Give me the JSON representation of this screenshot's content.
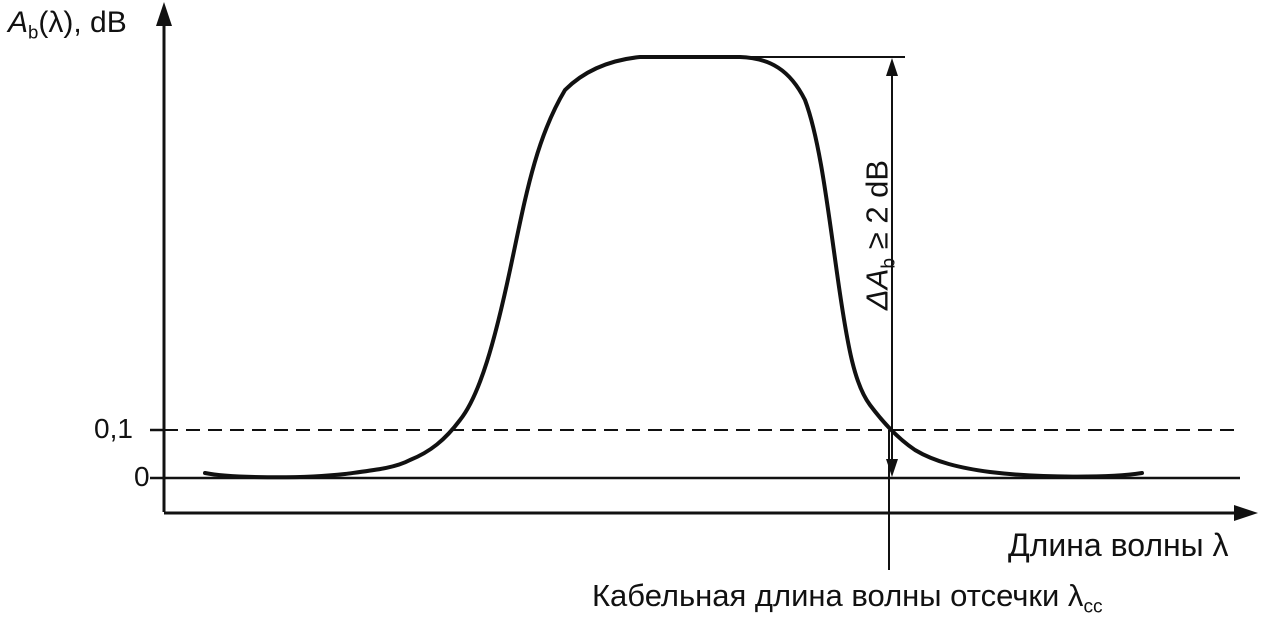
{
  "y_axis": {
    "label_main": "A",
    "label_sub": "b",
    "label_rest": "(λ), dB"
  },
  "x_axis": {
    "label": "Длина волны λ"
  },
  "ticks": {
    "zero": "0",
    "point_one": "0,1"
  },
  "annotations": {
    "delta_prefix": "ΔA",
    "delta_sub": "b",
    "delta_rest": " ≥ 2 dB",
    "cutoff_text": "Кабельная длина волны отсечки λ",
    "cutoff_sub": "cc"
  },
  "colors": {
    "line": "#111111",
    "background": "#ffffff"
  }
}
